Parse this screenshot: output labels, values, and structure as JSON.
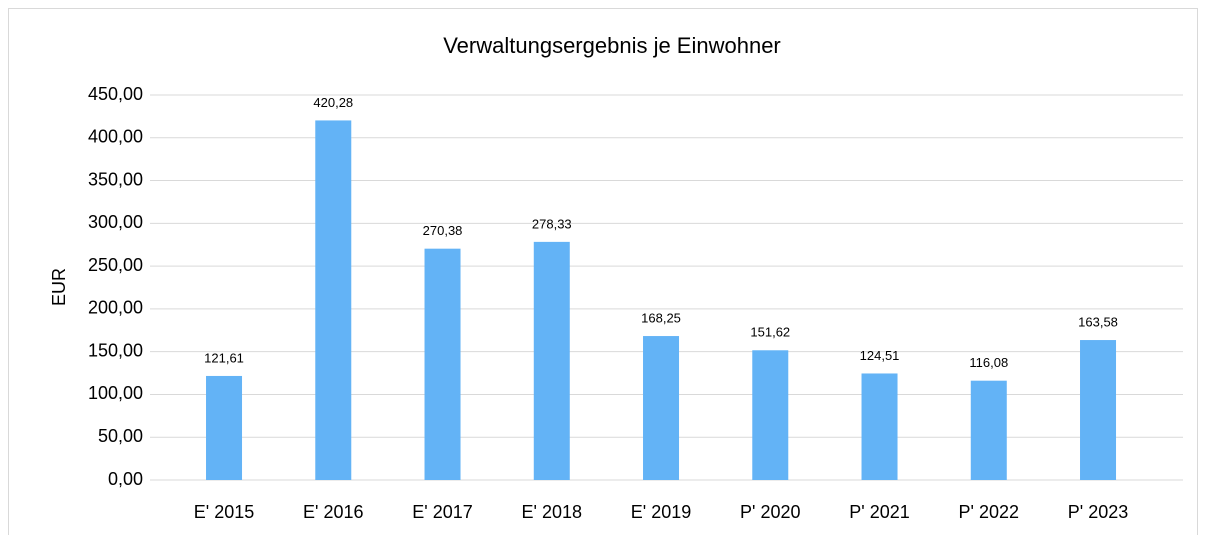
{
  "chart_data": {
    "type": "bar",
    "title": "Verwaltungsergebnis je Einwohner",
    "y_label": "EUR",
    "categories": [
      "E' 2015",
      "E' 2016",
      "E' 2017",
      "E' 2018",
      "E' 2019",
      "P' 2020",
      "P' 2021",
      "P' 2022",
      "P' 2023"
    ],
    "values": [
      121.61,
      420.28,
      270.38,
      278.33,
      168.25,
      151.62,
      124.51,
      116.08,
      163.58
    ],
    "value_labels": [
      "121,61",
      "420,28",
      "270,38",
      "278,33",
      "168,25",
      "151,62",
      "124,51",
      "116,08",
      "163,58"
    ],
    "color": "#63b3f6",
    "ylim": [
      0,
      450
    ],
    "yticks": [
      {
        "value": 0,
        "label": "0,00"
      },
      {
        "value": 50,
        "label": "50,00"
      },
      {
        "value": 100,
        "label": "100,00"
      },
      {
        "value": 150,
        "label": "150,00"
      },
      {
        "value": 200,
        "label": "200,00"
      },
      {
        "value": 250,
        "label": "250,00"
      },
      {
        "value": 300,
        "label": "300,00"
      },
      {
        "value": 350,
        "label": "350,00"
      },
      {
        "value": 400,
        "label": "400,00"
      },
      {
        "value": 450,
        "label": "450,00"
      }
    ],
    "grid": true
  }
}
